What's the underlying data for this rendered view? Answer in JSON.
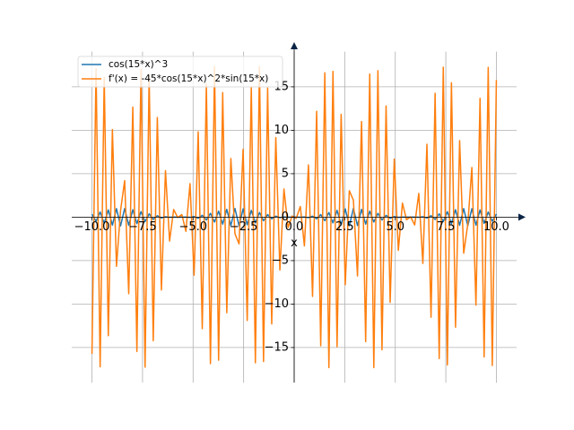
{
  "chart_data": {
    "type": "line",
    "xlabel": "x",
    "xlim": [
      -11,
      11
    ],
    "ylim": [
      -19.05,
      19.05
    ],
    "xticks": [
      {
        "value": -10,
        "label": "−10.0"
      },
      {
        "value": -7.5,
        "label": "−7.5"
      },
      {
        "value": -5,
        "label": "−5.0"
      },
      {
        "value": -2.5,
        "label": "−2.5"
      },
      {
        "value": 0,
        "label": "0.0"
      },
      {
        "value": 2.5,
        "label": "2.5"
      },
      {
        "value": 5,
        "label": "5.0"
      },
      {
        "value": 7.5,
        "label": "7.5"
      },
      {
        "value": 10,
        "label": "10.0"
      }
    ],
    "yticks": [
      {
        "value": -15,
        "label": "−15"
      },
      {
        "value": -10,
        "label": "−10"
      },
      {
        "value": -5,
        "label": "−5"
      },
      0,
      5,
      10,
      15
    ],
    "grid": true,
    "legend": "upper left",
    "x": [
      -10.0,
      -9.798,
      -9.596,
      -9.394,
      -9.192,
      -8.99,
      -8.788,
      -8.586,
      -8.384,
      -8.182,
      -7.98,
      -7.778,
      -7.576,
      -7.374,
      -7.172,
      -6.97,
      -6.768,
      -6.566,
      -6.364,
      -6.162,
      -5.96,
      -5.758,
      -5.556,
      -5.354,
      -5.152,
      -4.949,
      -4.747,
      -4.545,
      -4.343,
      -4.141,
      -3.939,
      -3.737,
      -3.535,
      -3.333,
      -3.131,
      -2.929,
      -2.727,
      -2.525,
      -2.323,
      -2.121,
      -1.919,
      -1.717,
      -1.515,
      -1.313,
      -1.111,
      -0.909,
      -0.707,
      -0.505,
      -0.303,
      -0.101,
      0.101,
      0.303,
      0.505,
      0.707,
      0.909,
      1.111,
      1.313,
      1.515,
      1.717,
      1.919,
      2.121,
      2.323,
      2.525,
      2.727,
      2.929,
      3.131,
      3.333,
      3.535,
      3.737,
      3.939,
      4.141,
      4.343,
      4.545,
      4.747,
      4.949,
      5.152,
      5.354,
      5.556,
      5.758,
      5.96,
      6.162,
      6.364,
      6.566,
      6.768,
      6.97,
      7.172,
      7.374,
      7.576,
      7.778,
      7.98,
      8.182,
      8.384,
      8.586,
      8.788,
      8.99,
      9.192,
      9.394,
      9.596,
      9.798,
      10.0
    ],
    "series": [
      {
        "name": "cos(15*x)^3",
        "color": "#1f77b4",
        "values": [
          0.342,
          -0.465,
          0.593,
          -0.717,
          0.828,
          -0.917,
          0.976,
          -1.0,
          0.987,
          -0.938,
          0.858,
          -0.753,
          0.632,
          -0.504,
          0.379,
          -0.265,
          0.169,
          -0.096,
          0.045,
          -0.016,
          0.003,
          0.0,
          -0.001,
          0.007,
          -0.027,
          0.065,
          -0.127,
          0.212,
          -0.317,
          0.435,
          -0.563,
          0.689,
          -0.804,
          0.898,
          -0.965,
          0.997,
          -0.993,
          0.952,
          -0.878,
          0.779,
          -0.662,
          0.534,
          -0.41,
          0.294,
          -0.194,
          0.112,
          -0.056,
          0.02,
          -0.004,
          0.0,
          0.0,
          -0.005,
          0.021,
          -0.055,
          0.111,
          -0.19,
          0.291,
          -0.408,
          0.534,
          -0.661,
          0.78,
          -0.88,
          0.953,
          -0.993,
          0.997,
          -0.965,
          0.898,
          -0.804,
          0.689,
          -0.562,
          0.435,
          -0.315,
          0.211,
          -0.127,
          0.065,
          -0.027,
          0.007,
          -0.001,
          0.0,
          0.003,
          -0.016,
          0.045,
          -0.096,
          0.171,
          -0.266,
          0.38,
          -0.504,
          0.632,
          -0.753,
          0.858,
          -0.938,
          0.987,
          -0.999,
          0.975,
          -0.916,
          0.827,
          -0.716,
          0.592,
          -0.464,
          0.345
        ]
      },
      {
        "name": "f'(x) = -45*cos(15*x)^2*sin(15*x)",
        "color": "#ff7f0e",
        "values": [
          -15.73,
          17.07,
          -17.23,
          16.08,
          -13.64,
          10.08,
          -5.66,
          0.76,
          4.2,
          -8.81,
          12.66,
          -15.46,
          17.01,
          -17.26,
          16.26,
          -14.22,
          11.47,
          -8.38,
          5.35,
          -2.75,
          0.88,
          -0.04,
          0.3,
          -1.63,
          3.85,
          -6.68,
          9.82,
          -12.83,
          15.3,
          -16.86,
          17.31,
          -16.46,
          14.33,
          -11.0,
          6.74,
          -1.9,
          -3.08,
          7.81,
          -11.89,
          14.93,
          -16.76,
          17.32,
          -16.62,
          14.86,
          -12.29,
          9.16,
          -6.09,
          3.24,
          -1.19,
          0.13,
          -0.14,
          1.23,
          -3.31,
          6.01,
          -9.12,
          12.18,
          -14.8,
          16.61,
          -17.32,
          16.77,
          -14.9,
          11.83,
          -7.77,
          3.04,
          1.95,
          -6.77,
          11.01,
          -14.33,
          16.47,
          -17.31,
          16.86,
          -15.27,
          12.8,
          -9.82,
          6.68,
          -3.82,
          1.61,
          -0.29,
          0.04,
          -0.9,
          2.74,
          -5.33,
          8.39,
          -11.52,
          14.26,
          -16.27,
          17.26,
          -17.01,
          15.47,
          -12.66,
          8.81,
          -4.15,
          -0.81,
          5.71,
          -10.12,
          13.67,
          -16.09,
          17.23,
          -17.07,
          15.78
        ]
      }
    ]
  }
}
